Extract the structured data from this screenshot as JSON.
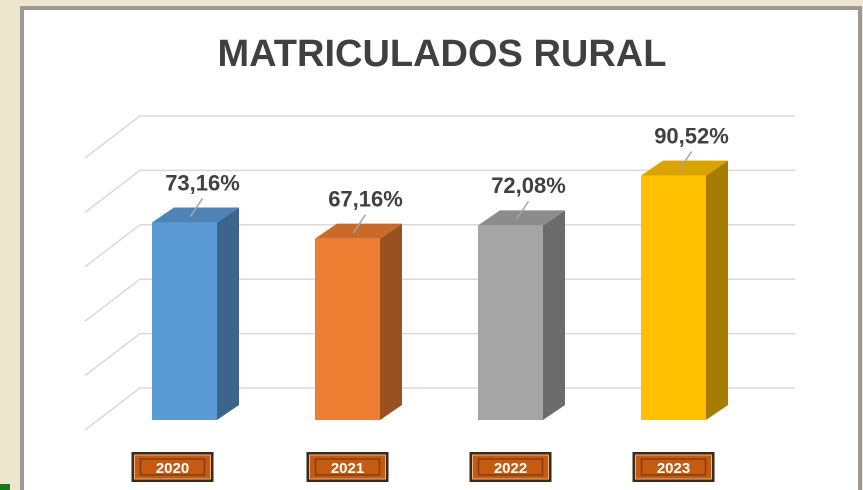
{
  "chart_data": {
    "type": "bar3d",
    "title": "MATRICULADOS RURAL",
    "categories": [
      "2020",
      "2021",
      "2022",
      "2023"
    ],
    "values": [
      73.16,
      67.16,
      72.08,
      90.52
    ],
    "value_labels": [
      "73,16%",
      "67,16%",
      "72,08%",
      "90,52%"
    ],
    "colors": [
      "#5b9bd5",
      "#ed7d31",
      "#a5a5a5",
      "#ffc000"
    ],
    "ylim": [
      0,
      100
    ],
    "yticks": [
      0,
      20,
      40,
      60,
      80,
      100
    ],
    "grid": true
  }
}
